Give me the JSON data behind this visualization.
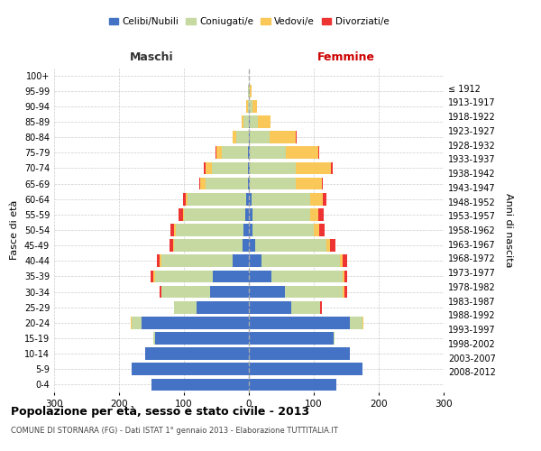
{
  "age_groups": [
    "0-4",
    "5-9",
    "10-14",
    "15-19",
    "20-24",
    "25-29",
    "30-34",
    "35-39",
    "40-44",
    "45-49",
    "50-54",
    "55-59",
    "60-64",
    "65-69",
    "70-74",
    "75-79",
    "80-84",
    "85-89",
    "90-94",
    "95-99",
    "100+"
  ],
  "birth_years": [
    "2008-2012",
    "2003-2007",
    "1998-2002",
    "1993-1997",
    "1988-1992",
    "1983-1987",
    "1978-1982",
    "1973-1977",
    "1968-1972",
    "1963-1967",
    "1958-1962",
    "1953-1957",
    "1948-1952",
    "1943-1947",
    "1938-1942",
    "1933-1937",
    "1928-1932",
    "1923-1927",
    "1918-1922",
    "1913-1917",
    "≤ 1912"
  ],
  "male": {
    "celibi": [
      150,
      180,
      160,
      145,
      165,
      80,
      60,
      55,
      25,
      10,
      8,
      5,
      4,
      2,
      2,
      2,
      0,
      0,
      0,
      0,
      0
    ],
    "coniugati": [
      0,
      0,
      0,
      2,
      15,
      35,
      75,
      90,
      110,
      105,
      105,
      95,
      90,
      65,
      55,
      40,
      20,
      8,
      2,
      1,
      0
    ],
    "vedovi": [
      0,
      0,
      0,
      0,
      2,
      0,
      0,
      2,
      2,
      2,
      2,
      2,
      3,
      8,
      10,
      8,
      5,
      3,
      2,
      0,
      0
    ],
    "divorziati": [
      0,
      0,
      0,
      0,
      0,
      0,
      3,
      5,
      5,
      5,
      6,
      6,
      5,
      2,
      2,
      2,
      0,
      0,
      0,
      0,
      0
    ]
  },
  "female": {
    "nubili": [
      135,
      175,
      155,
      130,
      155,
      65,
      55,
      35,
      20,
      10,
      5,
      5,
      4,
      2,
      2,
      2,
      2,
      2,
      0,
      0,
      0
    ],
    "coniugate": [
      0,
      0,
      0,
      2,
      20,
      45,
      90,
      110,
      120,
      110,
      95,
      90,
      90,
      70,
      70,
      55,
      30,
      12,
      5,
      2,
      0
    ],
    "vedove": [
      0,
      0,
      0,
      0,
      2,
      0,
      2,
      2,
      4,
      5,
      8,
      12,
      20,
      40,
      55,
      50,
      40,
      20,
      8,
      2,
      0
    ],
    "divorziate": [
      0,
      0,
      0,
      0,
      0,
      3,
      5,
      5,
      8,
      8,
      8,
      8,
      5,
      2,
      2,
      2,
      2,
      0,
      0,
      0,
      0
    ]
  },
  "colors": {
    "celibi": "#4472C4",
    "coniugati": "#C5D9A0",
    "vedovi": "#FAC858",
    "divorziati": "#EE3333"
  },
  "xlim": 300,
  "title": "Popolazione per età, sesso e stato civile - 2013",
  "subtitle": "COMUNE DI STORNARA (FG) - Dati ISTAT 1° gennaio 2013 - Elaborazione TUTTITALIA.IT",
  "ylabel_left": "Fasce di età",
  "ylabel_right": "Anni di nascita",
  "xlabel_left": "Maschi",
  "xlabel_right": "Femmine",
  "bg_color": "#ffffff",
  "grid_color": "#cccccc"
}
